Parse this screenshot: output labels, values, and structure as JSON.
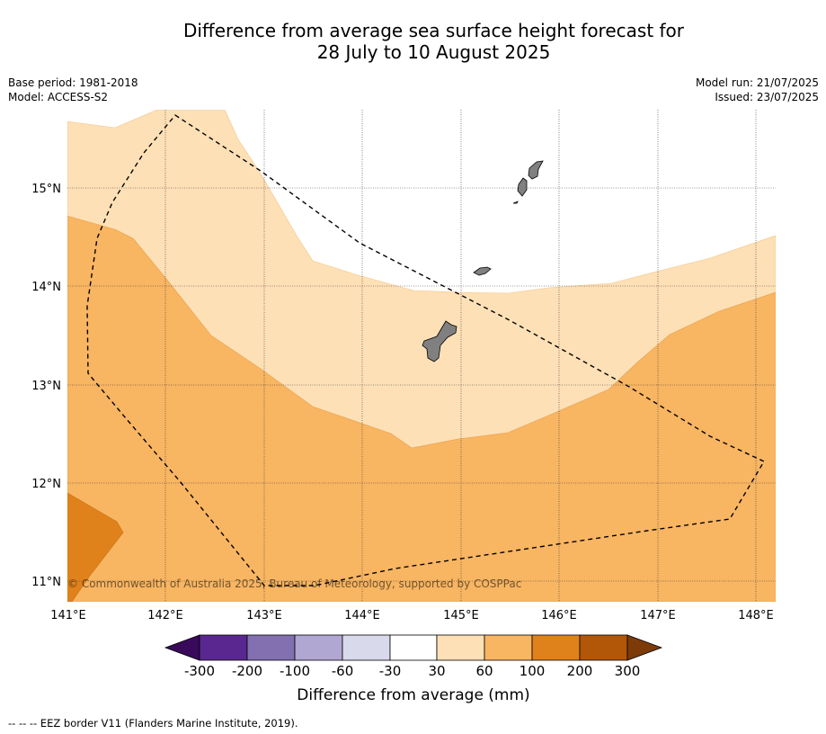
{
  "title": {
    "line1": "Difference from average sea surface height forecast for",
    "line2": "28 July to 10 August 2025"
  },
  "meta": {
    "base_period": "Base period: 1981-2018",
    "model": "Model: ACCESS-S2",
    "model_run": "Model run: 21/07/2025",
    "issued": "Issued: 23/07/2025"
  },
  "map": {
    "lon_ticks": [
      "141°E",
      "142°E",
      "143°E",
      "144°E",
      "145°E",
      "146°E",
      "147°E",
      "148°E"
    ],
    "lat_ticks": [
      "15°N",
      "14°N",
      "13°N",
      "12°N",
      "11°N"
    ],
    "copyright": "© Commonwealth of Australia 2025, Bureau of Meteorology, supported by COSPPac",
    "land_color": "#808080",
    "eez_style": "dashed black line"
  },
  "colorbar": {
    "label": "Difference from average (mm)",
    "ticks": [
      "-300",
      "-200",
      "-100",
      "-60",
      "-30",
      "30",
      "60",
      "100",
      "200",
      "300"
    ],
    "colors": [
      "#3a0a5a",
      "#5a2790",
      "#8270b0",
      "#b1a7d3",
      "#d9d9ec",
      "#ffffff",
      "#fde0b6",
      "#f8b562",
      "#e0821c",
      "#b25607",
      "#7d3b0a"
    ]
  },
  "footer": {
    "legend": "--  --  -- EEZ border V11 (Flanders Marine Institute, 2019)."
  }
}
